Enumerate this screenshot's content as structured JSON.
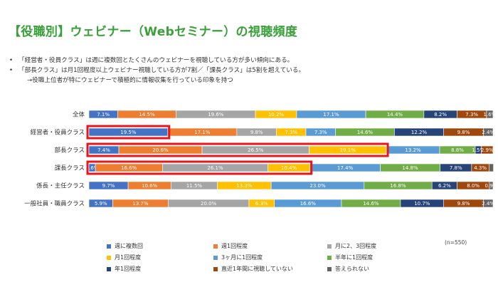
{
  "slide": {
    "title": "【役職別】ウェビナー（Webセミナー）の視聴頻度",
    "bullets": [
      "「経営者・役員クラス」は週に複数回とたくさんのウェビナーを視聴している方が多い傾向にある。",
      "「部長クラス」は月1回程度以上ウェビナー視聴している方が7割／「課長クラス」は5割を超えている。"
    ],
    "sub_bullet": "→役職上位者が特にウェビナーで積極的に情報収集を行っている印象を持つ",
    "bullet_marker": "•",
    "note": "(n=550)"
  },
  "colors": {
    "title": "#3aa03a",
    "highlight": "#e8151c"
  },
  "chart_data": {
    "type": "bar",
    "orientation": "horizontal",
    "stacked": true,
    "percent": true,
    "xlim": [
      0,
      100
    ],
    "grid": false,
    "legend_position": "bottom",
    "categories": [
      "全体",
      "経営者・役員クラス",
      "部長クラス",
      "課長クラス",
      "係長・主任クラス",
      "一般社員・職員クラス"
    ],
    "series": [
      {
        "name": "週に複数回",
        "color": "#4472c4",
        "values": [
          7.1,
          19.5,
          7.4,
          1.6,
          9.7,
          5.9
        ],
        "labels": [
          "7.1%",
          "19.5%",
          "7.4%",
          "1.6%",
          "9.7%",
          "5.9%"
        ]
      },
      {
        "name": "週1回程度",
        "color": "#ed7d31",
        "values": [
          14.5,
          17.1,
          20.6,
          16.6,
          10.6,
          13.7
        ],
        "labels": [
          "14.5%",
          "17.1%",
          "20.6%",
          "16.6%",
          "10.6%",
          "13.7%"
        ]
      },
      {
        "name": "月に2、3回程度",
        "color": "#a5a5a5",
        "values": [
          19.6,
          9.8,
          26.5,
          26.1,
          11.5,
          20.0
        ],
        "labels": [
          "19.6%",
          "9.8%",
          "26.5%",
          "26.1%",
          "11.5%",
          "20.0%"
        ]
      },
      {
        "name": "月1回程度",
        "color": "#ffc000",
        "values": [
          10.2,
          7.3,
          19.1,
          10.4,
          13.3,
          6.3
        ],
        "labels": [
          "10.2%",
          "7.3%",
          "19.1%",
          "10.4%",
          "13.3%",
          "6.3%"
        ]
      },
      {
        "name": "3ヶ月に1回程度",
        "color": "#5b9bd5",
        "values": [
          17.1,
          7.3,
          13.2,
          17.4,
          23.0,
          16.6
        ],
        "labels": [
          "17.1%",
          "7.3%",
          "13.2%",
          "17.4%",
          "23.0%",
          "16.6%"
        ]
      },
      {
        "name": "半年に1回程度",
        "color": "#70ad47",
        "values": [
          14.4,
          14.6,
          8.8,
          14.8,
          16.8,
          14.6
        ],
        "labels": [
          "14.4%",
          "14.6%",
          "8.8%",
          "14.8%",
          "16.8%",
          "14.6%"
        ]
      },
      {
        "name": "年1回程度",
        "color": "#264478",
        "values": [
          8.2,
          12.2,
          1.5,
          7.8,
          6.2,
          10.7
        ],
        "labels": [
          "8.2%",
          "12.2%",
          "1.5%",
          "7.8%",
          "6.2%",
          "10.7%"
        ]
      },
      {
        "name": "直近1年間に視聴していない",
        "color": "#9e480e",
        "values": [
          7.3,
          9.8,
          2.9,
          4.3,
          8.0,
          9.8
        ],
        "labels": [
          "7.3%",
          "9.8%",
          "2.9%",
          "4.3%",
          "8.0%",
          "9.8%"
        ]
      },
      {
        "name": "答えられない",
        "color": "#636363",
        "values": [
          1.6,
          2.4,
          0,
          1.1,
          0.9,
          2.4
        ],
        "labels": [
          "1.6%",
          "2.4%",
          "",
          "",
          "0.9%",
          "2.4%"
        ]
      }
    ],
    "highlights": [
      {
        "row": 1,
        "from": 0,
        "to": 1
      },
      {
        "row": 2,
        "from": 0,
        "to": 4
      },
      {
        "row": 3,
        "from": 0,
        "to": 4
      }
    ]
  }
}
